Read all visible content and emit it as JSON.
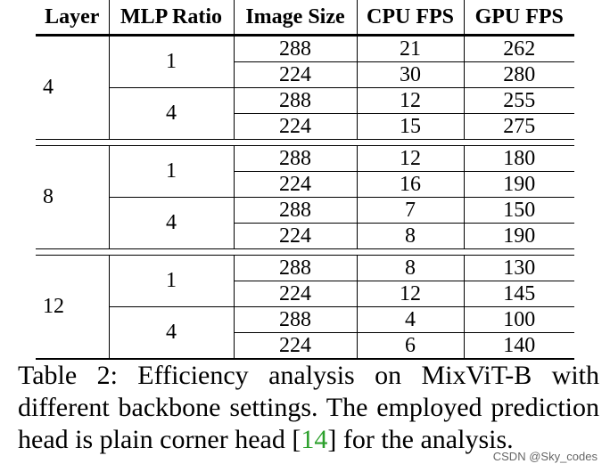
{
  "table": {
    "headers": [
      "Layer",
      "MLP Ratio",
      "Image Size",
      "CPU FPS",
      "GPU FPS"
    ],
    "groups": [
      {
        "layer": "4",
        "ratios": [
          {
            "ratio": "1",
            "rows": [
              [
                "288",
                "21",
                "262"
              ],
              [
                "224",
                "30",
                "280"
              ]
            ]
          },
          {
            "ratio": "4",
            "rows": [
              [
                "288",
                "12",
                "255"
              ],
              [
                "224",
                "15",
                "275"
              ]
            ]
          }
        ]
      },
      {
        "layer": "8",
        "ratios": [
          {
            "ratio": "1",
            "rows": [
              [
                "288",
                "12",
                "180"
              ],
              [
                "224",
                "16",
                "190"
              ]
            ]
          },
          {
            "ratio": "4",
            "rows": [
              [
                "288",
                "7",
                "150"
              ],
              [
                "224",
                "8",
                "190"
              ]
            ]
          }
        ]
      },
      {
        "layer": "12",
        "ratios": [
          {
            "ratio": "1",
            "rows": [
              [
                "288",
                "8",
                "130"
              ],
              [
                "224",
                "12",
                "145"
              ]
            ]
          },
          {
            "ratio": "4",
            "rows": [
              [
                "288",
                "4",
                "100"
              ],
              [
                "224",
                "6",
                "140"
              ]
            ]
          }
        ]
      }
    ]
  },
  "caption": {
    "text_before": "Table 2: Efficiency analysis on MixViT-B with different backbone settings. The employed prediction head is plain corner head [",
    "ref": "14",
    "text_after": "] for the analysis."
  },
  "watermark": "CSDN @Sky_codes"
}
